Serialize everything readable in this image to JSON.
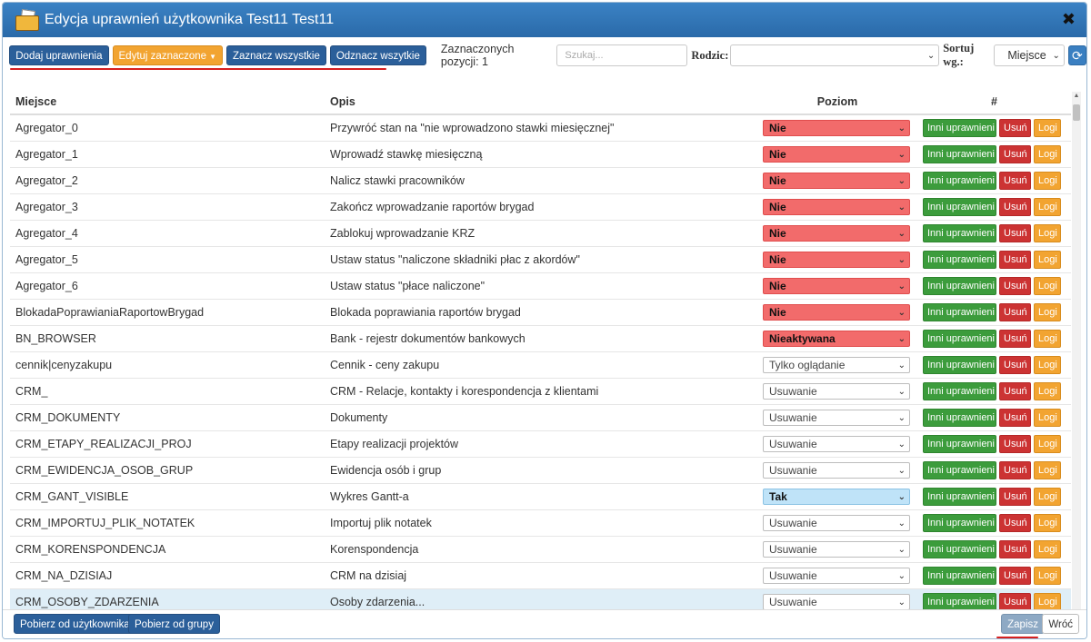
{
  "window": {
    "title": "Edycja uprawnień użytkownika Test11 Test11",
    "close_symbol": "✖"
  },
  "toolbar": {
    "add_label": "Dodaj uprawnienia",
    "edit_label": "Edytuj zaznaczone",
    "select_all_label": "Zaznacz wszystkie",
    "deselect_all_label": "Odznacz wszytkie",
    "selected_count_label": "Zaznaczonych pozycji: 1",
    "search_placeholder": "Szukaj...",
    "parent_label": "Rodzic:",
    "parent_value": "",
    "sort_label": "Sortuj wg.:",
    "sort_value": "Miejsce"
  },
  "table": {
    "headers": {
      "place": "Miejsce",
      "desc": "Opis",
      "level": "Poziom",
      "actions": "#"
    },
    "action_labels": {
      "others": "Inni uprawnieni",
      "delete": "Usuń",
      "logs": "Logi"
    },
    "rows": [
      {
        "place": "Agregator_0",
        "desc": "Przywróć stan na \"nie wprowadzono stawki miesięcznej\"",
        "level": "Nie"
      },
      {
        "place": "Agregator_1",
        "desc": "Wprowadź stawkę miesięczną",
        "level": "Nie"
      },
      {
        "place": "Agregator_2",
        "desc": "Nalicz stawki pracowników",
        "level": "Nie"
      },
      {
        "place": "Agregator_3",
        "desc": "Zakończ wprowadzanie raportów brygad",
        "level": "Nie"
      },
      {
        "place": "Agregator_4",
        "desc": "Zablokuj wprowadzanie KRZ",
        "level": "Nie"
      },
      {
        "place": "Agregator_5",
        "desc": "Ustaw status \"naliczone składniki płac z akordów\"",
        "level": "Nie"
      },
      {
        "place": "Agregator_6",
        "desc": "Ustaw status \"płace naliczone\"",
        "level": "Nie"
      },
      {
        "place": "BlokadaPoprawianiaRaportowBrygad",
        "desc": "Blokada poprawiania raportów brygad",
        "level": "Nie"
      },
      {
        "place": "BN_BROWSER",
        "desc": "Bank - rejestr dokumentów bankowych",
        "level": "Nieaktywana"
      },
      {
        "place": "cennik|cenyzakupu",
        "desc": "Cennik - ceny zakupu",
        "level": "Tylko oglądanie"
      },
      {
        "place": "CRM_",
        "desc": "CRM - Relacje, kontakty i korespondencja z klientami",
        "level": "Usuwanie"
      },
      {
        "place": "CRM_DOKUMENTY",
        "desc": "Dokumenty",
        "level": "Usuwanie"
      },
      {
        "place": "CRM_ETAPY_REALIZACJI_PROJ",
        "desc": "Etapy realizacji projektów",
        "level": "Usuwanie"
      },
      {
        "place": "CRM_EWIDENCJA_OSOB_GRUP",
        "desc": "Ewidencja osób i grup",
        "level": "Usuwanie"
      },
      {
        "place": "CRM_GANT_VISIBLE",
        "desc": "Wykres Gantt-a",
        "level": "Tak"
      },
      {
        "place": "CRM_IMPORTUJ_PLIK_NOTATEK",
        "desc": "Importuj plik notatek",
        "level": "Usuwanie"
      },
      {
        "place": "CRM_KORENSPONDENCJA",
        "desc": "Korenspondencja",
        "level": "Usuwanie"
      },
      {
        "place": "CRM_NA_DZISIAJ",
        "desc": "CRM na dzisiaj",
        "level": "Usuwanie"
      },
      {
        "place": "CRM_OSOBY_ZDARZENIA",
        "desc": "Osoby zdarzenia...",
        "level": "Usuwanie"
      }
    ]
  },
  "footer": {
    "from_user_label": "Pobierz od użytkownika",
    "from_group_label": "Pobierz od grupy",
    "save_label": "Zapisz",
    "back_label": "Wróć"
  },
  "colors": {
    "title_bar": "#2f74b5",
    "primary_button": "#2b5f9a",
    "warning_button": "#f2a431",
    "success_button": "#3c9c3c",
    "danger_button": "#cc3333",
    "level_denied": "#f26b6b",
    "level_yes": "#bfe3f8",
    "underline_accent": "#d62020"
  }
}
